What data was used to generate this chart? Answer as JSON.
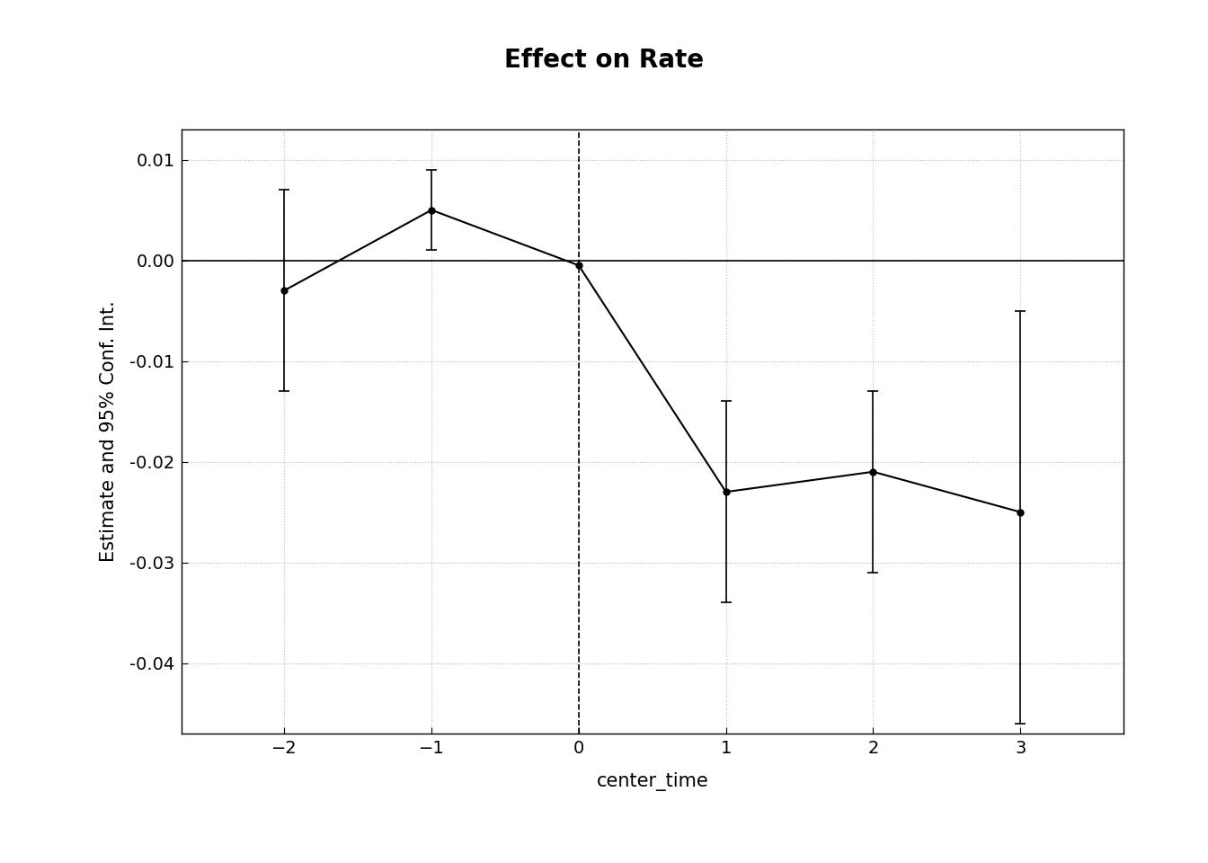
{
  "title": "Effect on Rate",
  "xlabel": "center_time",
  "ylabel": "Estimate and 95% Conf. Int.",
  "x": [
    -2,
    -1,
    0,
    1,
    2,
    3
  ],
  "y": [
    -0.003,
    0.005,
    -0.0005,
    -0.023,
    -0.021,
    -0.025
  ],
  "ci_lower": [
    -0.013,
    0.001,
    -0.0005,
    -0.034,
    -0.031,
    -0.046
  ],
  "ci_upper": [
    0.007,
    0.009,
    -0.0005,
    -0.014,
    -0.013,
    -0.005
  ],
  "ylim": [
    -0.047,
    0.013
  ],
  "yticks": [
    0.01,
    0.0,
    -0.01,
    -0.02,
    -0.03,
    -0.04
  ],
  "xticks": [
    -2,
    -1,
    0,
    1,
    2,
    3
  ],
  "xlim": [
    -2.7,
    3.7
  ],
  "hline_y": 0.0,
  "vline_x": 0,
  "background_color": "#ffffff",
  "line_color": "#000000",
  "grid_color": "#bbbbbb",
  "title_fontsize": 20,
  "label_fontsize": 15,
  "tick_fontsize": 14
}
